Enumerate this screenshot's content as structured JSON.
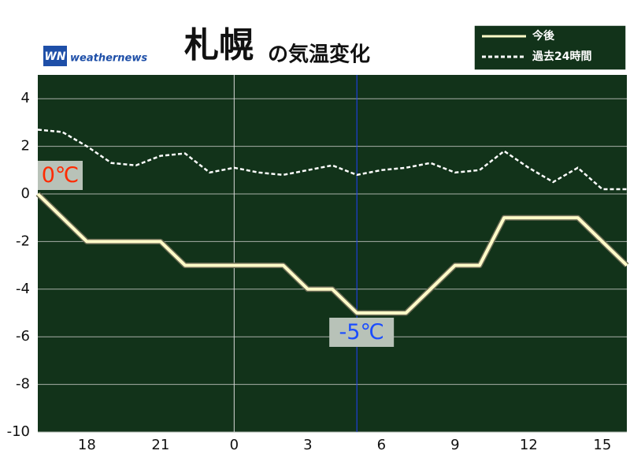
{
  "chart_data": {
    "type": "line",
    "title": "札幌",
    "title_suffix": "の気温変化",
    "logo": {
      "mark": "WN",
      "text": "weathernews"
    },
    "x": [
      16,
      17,
      18,
      19,
      20,
      21,
      22,
      23,
      24,
      25,
      26,
      27,
      28,
      29,
      30,
      31,
      32,
      33,
      34,
      35,
      36,
      37,
      38,
      39,
      40
    ],
    "xlim": [
      16,
      40
    ],
    "xticks": [
      18,
      21,
      {
        "value": 24,
        "label": "0"
      },
      {
        "value": 27,
        "label": "3"
      },
      {
        "value": 30,
        "label": "6"
      },
      {
        "value": 33,
        "label": "9"
      },
      {
        "value": 36,
        "label": "12"
      },
      {
        "value": 39,
        "label": "15"
      }
    ],
    "ylim": [
      -10,
      5
    ],
    "yticks": [
      -10,
      -8,
      -6,
      -4,
      -2,
      0,
      2,
      4
    ],
    "grid": true,
    "vlines": [
      {
        "x": 24,
        "color": "#d8d8d8"
      },
      {
        "x": 29,
        "color": "#2040ff"
      }
    ],
    "series": [
      {
        "name": "今後",
        "color": "#fffbc8",
        "style": "solid",
        "values": [
          0,
          -1,
          -2,
          -2,
          -2,
          -2,
          -3,
          -3,
          -3,
          -3,
          -3,
          -4,
          -4,
          -5,
          -5,
          -5,
          -4,
          -3,
          -3,
          -1,
          -1,
          -1,
          -1,
          -2,
          -3
        ]
      },
      {
        "name": "過去24時間",
        "color": "#ffffff",
        "style": "dashed",
        "values": [
          2.7,
          2.6,
          2.0,
          1.3,
          1.2,
          1.6,
          1.7,
          0.9,
          1.1,
          0.9,
          0.8,
          1.0,
          1.2,
          0.8,
          1.0,
          1.1,
          1.3,
          0.9,
          1.0,
          1.8,
          1.1,
          0.5,
          1.1,
          0.2,
          0.2
        ]
      }
    ],
    "annotations": [
      {
        "text": "0℃",
        "x": 16,
        "y": 0,
        "color": "#ff2a00"
      },
      {
        "text": "-5℃",
        "x": 29,
        "y": -5,
        "color": "#1a4cff"
      }
    ]
  }
}
